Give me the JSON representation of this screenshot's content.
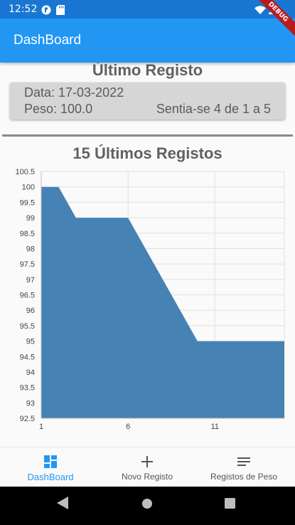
{
  "status_bar": {
    "time": "12:52",
    "debug_label": "DEBUG"
  },
  "app_bar": {
    "title": "DashBoard"
  },
  "last_record": {
    "title": "Último Registo",
    "date": "Data: 17-03-2022",
    "weight": "Peso: 100.0",
    "feeling": "Sentia-se 4 de 1 a 5"
  },
  "chart_section": {
    "title": "15 Últimos Registos"
  },
  "chart_data": {
    "type": "area",
    "x": [
      1,
      2,
      3,
      4,
      5,
      6,
      7,
      8,
      9,
      10,
      11,
      12,
      13,
      14,
      15
    ],
    "values": [
      100,
      100,
      99,
      99,
      99,
      99,
      98,
      97,
      96,
      95,
      95,
      95,
      95,
      95,
      95
    ],
    "xticks": [
      "1",
      "6",
      "11"
    ],
    "yticks": [
      "100.5",
      "100",
      "99.5",
      "99",
      "98.5",
      "98",
      "97.5",
      "97",
      "96.5",
      "96",
      "95.5",
      "95",
      "94.5",
      "94",
      "93.5",
      "93",
      "92.5"
    ],
    "ylim": [
      92.5,
      100.5
    ],
    "xlim": [
      1,
      15
    ],
    "grid": true,
    "fill_color": "#4682b4"
  },
  "bottom_nav": {
    "items": [
      {
        "label": "DashBoard",
        "icon": "dashboard-icon",
        "active": true
      },
      {
        "label": "Novo Registo",
        "icon": "add-icon",
        "active": false
      },
      {
        "label": "Registos de Peso",
        "icon": "list-icon",
        "active": false
      }
    ]
  },
  "colors": {
    "primary": "#2196f3",
    "status_bar": "#1976d2",
    "chart_fill": "#4682b4"
  }
}
